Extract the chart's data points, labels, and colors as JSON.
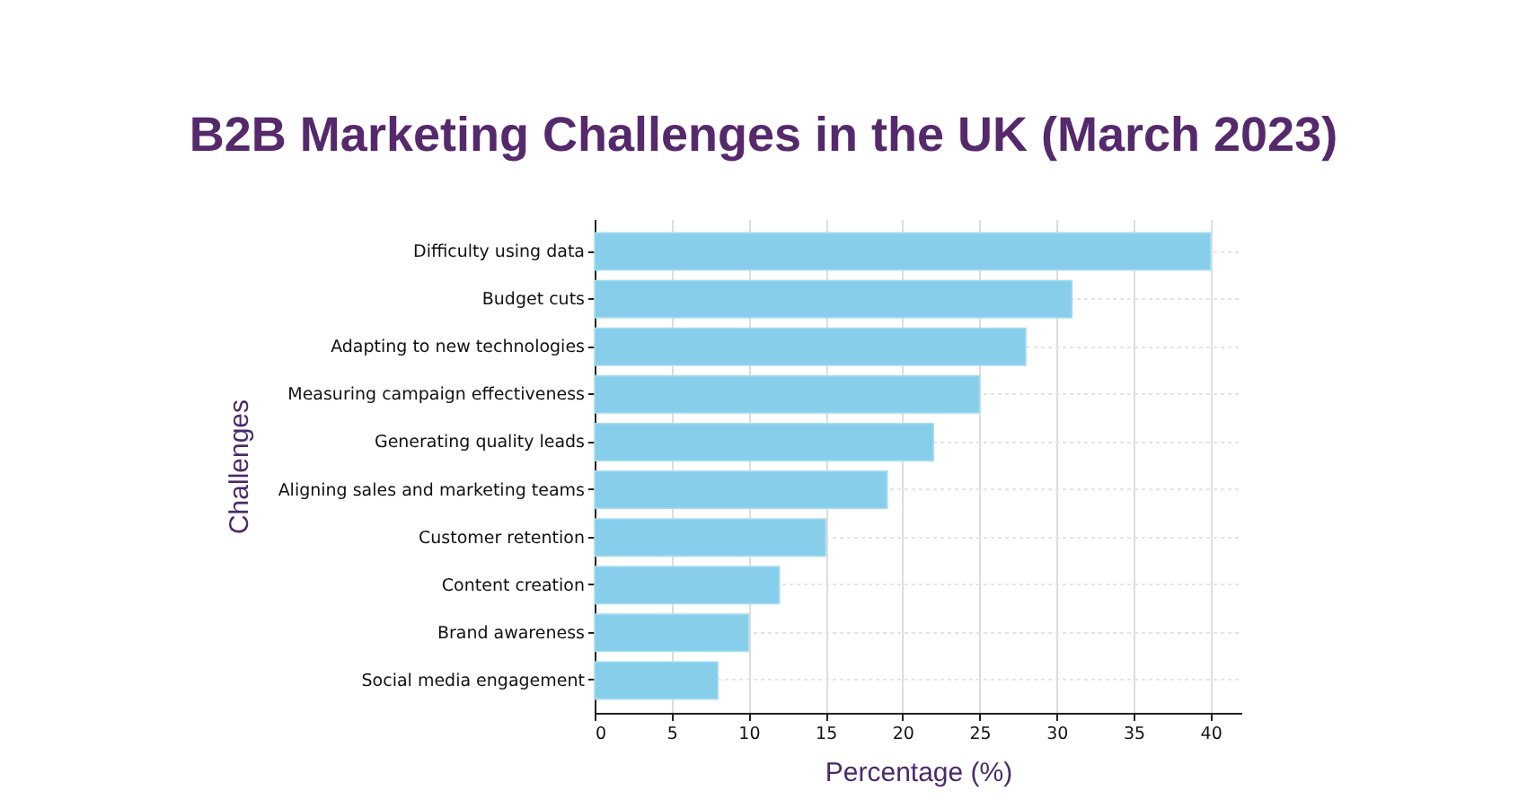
{
  "chart_data": {
    "type": "bar",
    "orientation": "horizontal",
    "title": "B2B Marketing Challenges in the UK (March 2023)",
    "xlabel": "Percentage (%)",
    "ylabel": "Challenges",
    "categories": [
      "Difficulty using data",
      "Budget cuts",
      "Adapting to new technologies",
      "Measuring campaign effectiveness",
      "Generating quality leads",
      "Aligning sales and marketing teams",
      "Customer retention",
      "Content creation",
      "Brand awareness",
      "Social media engagement"
    ],
    "values": [
      40,
      31,
      28,
      25,
      22,
      19,
      15,
      12,
      10,
      8
    ],
    "color": "#87ceeb",
    "xlim": [
      0,
      42
    ],
    "xticks": [
      0,
      5,
      10,
      15,
      20,
      25,
      30,
      35,
      40
    ],
    "grid": true
  }
}
